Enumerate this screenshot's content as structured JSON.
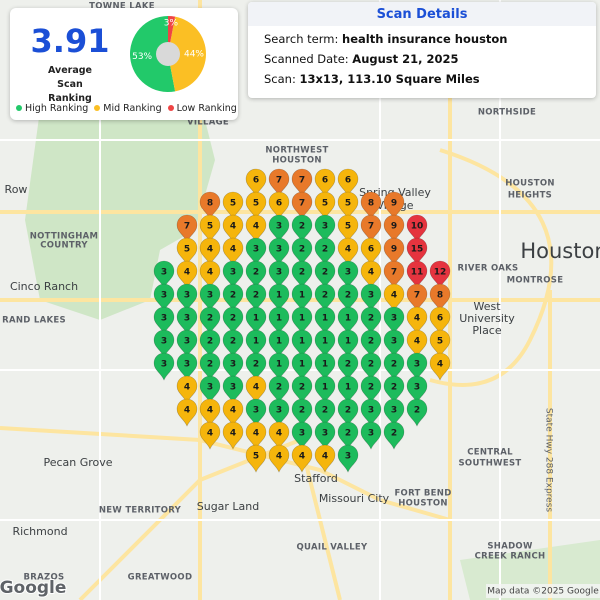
{
  "summary": {
    "average": 3.91,
    "average_label": "Average Scan Ranking",
    "pie": [
      {
        "name": "High Ranking",
        "value": 53,
        "label": "53%",
        "color": "#22c96a"
      },
      {
        "name": "Mid Ranking",
        "value": 44,
        "label": "44%",
        "color": "#fbbf24"
      },
      {
        "name": "Low Ranking",
        "value": 3,
        "label": "3%",
        "color": "#ef4444"
      }
    ]
  },
  "details": {
    "title": "Scan Details",
    "rows": [
      [
        "Search term:",
        "health insurance houston"
      ],
      [
        "Scanned Date:",
        "August 21, 2025"
      ],
      [
        "Scan:",
        "13x13, 113.10 Square Miles"
      ]
    ]
  },
  "pins": {
    "rank_colors": [
      "#1dbb5c",
      "#1dbb5c",
      "#1dbb5c",
      "#f5b50c",
      "#f5b50c",
      "#f5b50c",
      "#e8792a",
      "#e8792a",
      "#e8792a",
      "#e5343f",
      "#e5343f",
      "#e5343f",
      "#e5343f",
      "#e5343f",
      "#e5343f"
    ],
    "grid": [
      [
        null,
        null,
        null,
        null,
        6,
        7,
        7,
        6,
        6,
        null,
        null,
        null,
        null
      ],
      [
        null,
        null,
        8,
        5,
        5,
        6,
        7,
        5,
        5,
        8,
        9,
        null,
        null
      ],
      [
        null,
        7,
        5,
        4,
        4,
        3,
        2,
        3,
        5,
        7,
        9,
        10,
        null
      ],
      [
        null,
        5,
        4,
        4,
        3,
        3,
        2,
        2,
        4,
        6,
        9,
        15,
        null
      ],
      [
        3,
        4,
        4,
        3,
        2,
        3,
        2,
        2,
        3,
        4,
        7,
        11,
        12
      ],
      [
        3,
        3,
        3,
        2,
        2,
        1,
        1,
        2,
        2,
        3,
        4,
        7,
        8
      ],
      [
        3,
        3,
        2,
        2,
        1,
        1,
        1,
        1,
        1,
        2,
        3,
        4,
        6
      ],
      [
        3,
        3,
        2,
        2,
        1,
        1,
        1,
        1,
        1,
        2,
        3,
        4,
        5
      ],
      [
        3,
        3,
        2,
        3,
        2,
        1,
        1,
        1,
        2,
        2,
        2,
        3,
        4
      ],
      [
        null,
        4,
        3,
        3,
        4,
        2,
        2,
        1,
        1,
        2,
        2,
        3,
        null
      ],
      [
        null,
        4,
        4,
        4,
        3,
        3,
        2,
        2,
        2,
        3,
        3,
        2,
        null
      ],
      [
        null,
        null,
        4,
        4,
        4,
        4,
        3,
        3,
        2,
        3,
        2,
        null,
        null
      ],
      [
        null,
        null,
        null,
        null,
        5,
        4,
        4,
        4,
        3,
        null,
        null,
        null,
        null
      ]
    ]
  },
  "map_labels": [
    "TOWNE LAKE",
    "VILLAGE",
    "NORTHWEST",
    "HOUSTON",
    "Spring Valley",
    "Village",
    "Row",
    "NOTTINGHAM",
    "COUNTRY",
    "Cinco Ranch",
    "RAND LAKES",
    "NORTHSIDE",
    "HOUSTON",
    "HEIGHTS",
    "Houston",
    "RIVER OAKS",
    "MONTROSE",
    "West",
    "University",
    "Place",
    "Pecan Grove",
    "NEW TERRITORY",
    "Sugar Land",
    "Stafford",
    "Missouri City",
    "FORT BEND",
    "HOUSTON",
    "CENTRAL",
    "SOUTHWEST",
    "Richmond",
    "QUAIL VALLEY",
    "SHADOW",
    "CREEK RANCH",
    "BRAZOS",
    "GREATWOOD",
    "State Hwy 288 Express"
  ],
  "footer": {
    "logo": "Google",
    "attribution": "Map data ©2025 Google"
  }
}
